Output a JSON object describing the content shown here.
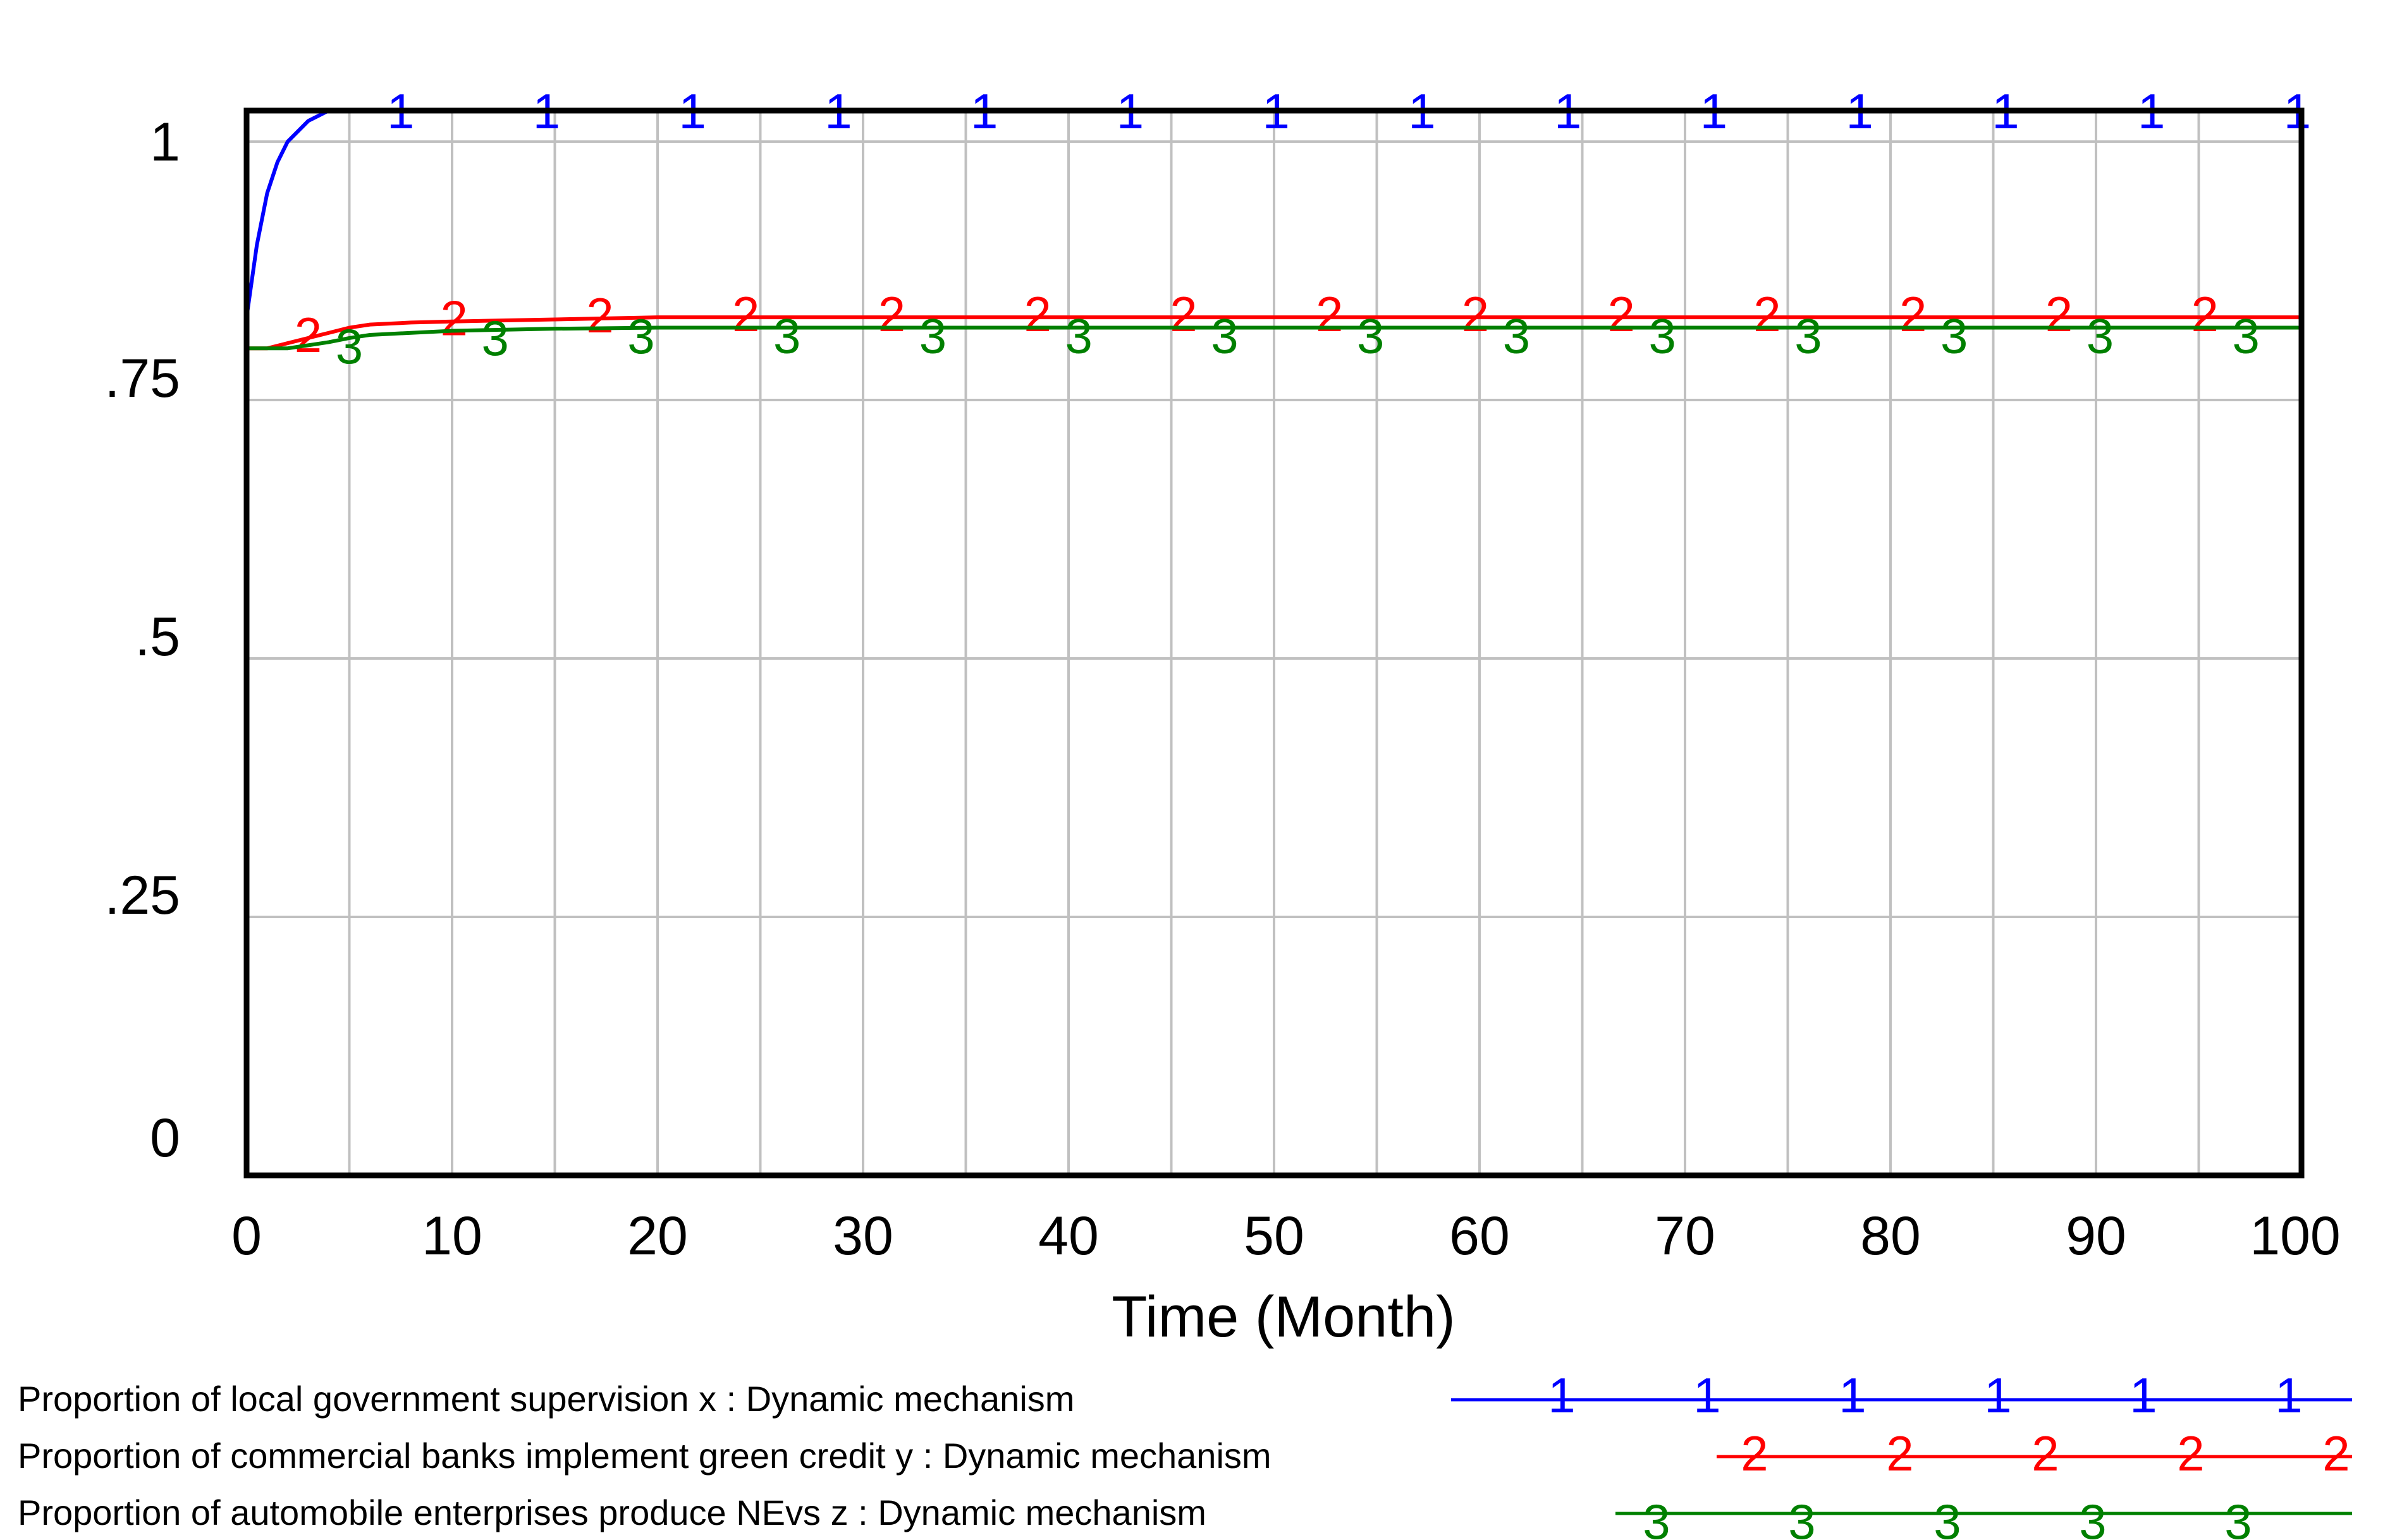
{
  "chart_data": {
    "type": "line",
    "title": "",
    "xlabel": "Time (Month)",
    "ylabel": "",
    "xlim": [
      0,
      100
    ],
    "ylim": [
      0,
      1.03
    ],
    "grid": true,
    "x_ticks": [
      0,
      10,
      20,
      30,
      40,
      50,
      60,
      70,
      80,
      90,
      100
    ],
    "x_tick_labels": [
      "0",
      "10",
      "20",
      "30",
      "40",
      "50",
      "60",
      "70",
      "80",
      "90",
      "100"
    ],
    "y_ticks": [
      0,
      0.25,
      0.5,
      0.75,
      1
    ],
    "y_tick_labels": [
      "0",
      ".25",
      ".5",
      ".75",
      "1"
    ],
    "legend_position": "bottom",
    "series": [
      {
        "name": "Proportion of local government supervision x : Dynamic mechanism",
        "marker": "1",
        "color": "#0000ff",
        "x": [
          0,
          0.5,
          1,
          1.5,
          2,
          2.5,
          3,
          3.5,
          4,
          5,
          6,
          8,
          10,
          20,
          30,
          40,
          50,
          60,
          70,
          80,
          90,
          100
        ],
        "y": [
          0.83,
          0.9,
          0.95,
          0.98,
          1.0,
          1.01,
          1.02,
          1.025,
          1.03,
          1.03,
          1.03,
          1.03,
          1.03,
          1.03,
          1.03,
          1.03,
          1.03,
          1.03,
          1.03,
          1.03,
          1.03,
          1.03
        ]
      },
      {
        "name": "Proportion of commercial banks implement green credit y : Dynamic mechanism",
        "marker": "2",
        "color": "#ff0000",
        "x": [
          0,
          1,
          2,
          3,
          4,
          5,
          6,
          8,
          10,
          15,
          20,
          30,
          40,
          50,
          60,
          70,
          80,
          90,
          100
        ],
        "y": [
          0.8,
          0.8,
          0.805,
          0.81,
          0.815,
          0.82,
          0.823,
          0.825,
          0.826,
          0.828,
          0.83,
          0.83,
          0.83,
          0.83,
          0.83,
          0.83,
          0.83,
          0.83,
          0.83
        ]
      },
      {
        "name": "Proportion of automobile enterprises produce NEvs z : Dynamic mechanism",
        "marker": "3",
        "color": "#008000",
        "x": [
          0,
          1,
          2,
          3,
          4,
          5,
          6,
          8,
          10,
          15,
          20,
          30,
          40,
          50,
          60,
          70,
          80,
          90,
          100
        ],
        "y": [
          0.8,
          0.8,
          0.8,
          0.803,
          0.806,
          0.81,
          0.813,
          0.815,
          0.817,
          0.819,
          0.82,
          0.82,
          0.82,
          0.82,
          0.82,
          0.82,
          0.82,
          0.82,
          0.82
        ]
      }
    ]
  },
  "colors": {
    "grid": "#c0c0c0",
    "frame": "#000000"
  }
}
